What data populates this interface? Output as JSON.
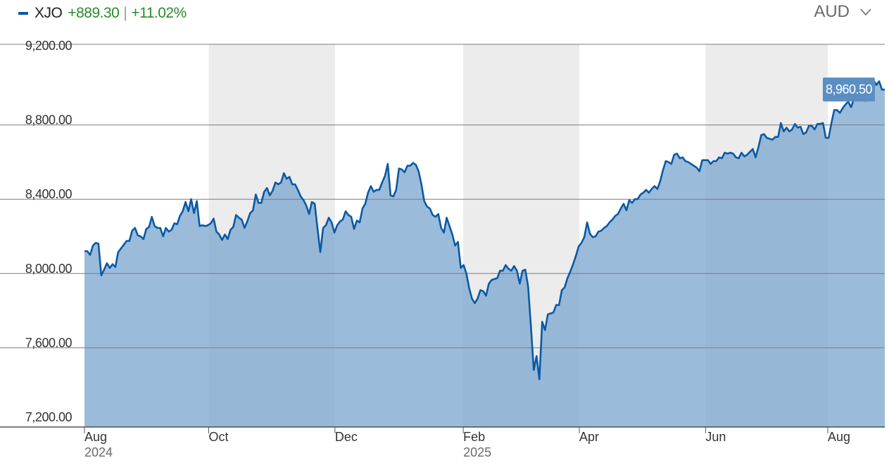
{
  "legend": {
    "symbol": "XJO",
    "change": "+889.30",
    "separator": "|",
    "change_pct": "+11.02%"
  },
  "currency": {
    "label": "AUD",
    "icon": "chevron-down-icon"
  },
  "colors": {
    "line": "#0a5aa3",
    "fill": "#7fa8d1",
    "band": "#ececec",
    "grid": "#7d7d7d",
    "positive": "#2a8a2a",
    "tooltip": "#5b8fc4"
  },
  "chart_data": {
    "type": "area",
    "series": [
      {
        "values": [
          8090,
          8090,
          8070,
          8120,
          8135,
          8130,
          7960,
          7990,
          8025,
          8000,
          8020,
          8005,
          8085,
          8105,
          8125,
          8145,
          8145,
          8200,
          8215,
          8175,
          8170,
          8155,
          8210,
          8220,
          8275,
          8225,
          8215,
          8215,
          8170,
          8215,
          8195,
          8205,
          8240,
          8235,
          8280,
          8305,
          8355,
          8305,
          8370,
          8295,
          8360,
          8225,
          8230,
          8225,
          8230,
          8240,
          8265,
          8195,
          8180,
          8150,
          8180,
          8155,
          8205,
          8220,
          8285,
          8270,
          8260,
          8215,
          8250,
          8295,
          8310,
          8395,
          8350,
          8350,
          8410,
          8430,
          8390,
          8415,
          8460,
          8450,
          8460,
          8510,
          8480,
          8490,
          8450,
          8450,
          8420,
          8385,
          8365,
          8335,
          8290,
          8355,
          8345,
          8210,
          8085,
          8215,
          8230,
          8270,
          8245,
          8190,
          8230,
          8250,
          8260,
          8305,
          8285,
          8275,
          8210,
          8255,
          8245,
          8320,
          8345,
          8405,
          8440,
          8410,
          8420,
          8420,
          8460,
          8495,
          8560,
          8390,
          8385,
          8420,
          8535,
          8530,
          8515,
          8550,
          8550,
          8565,
          8555,
          8520,
          8450,
          8360,
          8330,
          8320,
          8285,
          8275,
          8290,
          8215,
          8190,
          8270,
          8225,
          8180,
          8120,
          8140,
          8000,
          8015,
          7970,
          7890,
          7835,
          7810,
          7835,
          7880,
          7875,
          7850,
          7915,
          7935,
          7940,
          7945,
          7985,
          7985,
          8015,
          7995,
          7985,
          8010,
          7985,
          7915,
          7985,
          7990,
          7900,
          7685,
          7450,
          7525,
          7400,
          7710,
          7665,
          7750,
          7755,
          7760,
          7800,
          7800,
          7880,
          7895,
          7945,
          7980,
          8020,
          8065,
          8115,
          8135,
          8165,
          8245,
          8185,
          8165,
          8170,
          8195,
          8200,
          8215,
          8225,
          8245,
          8260,
          8280,
          8290,
          8320,
          8345,
          8310,
          8365,
          8350,
          8370,
          8370,
          8395,
          8405,
          8420,
          8405,
          8425,
          8440,
          8425,
          8465,
          8525,
          8575,
          8570,
          8560,
          8610,
          8615,
          8590,
          8595,
          8575,
          8570,
          8560,
          8550,
          8540,
          8520,
          8580,
          8580,
          8580,
          8560,
          8575,
          8575,
          8595,
          8590,
          8620,
          8615,
          8620,
          8615,
          8595,
          8590,
          8620,
          8600,
          8610,
          8625,
          8640,
          8595,
          8650,
          8715,
          8720,
          8700,
          8695,
          8690,
          8705,
          8705,
          8780,
          8735,
          8755,
          8735,
          8745,
          8775,
          8755,
          8760,
          8720,
          8730,
          8765,
          8765,
          8745,
          8775,
          8775,
          8780,
          8700,
          8700,
          8780,
          8850,
          8850,
          8835,
          8860,
          8880,
          8895,
          8865,
          8910,
          8950,
          8940,
          8920,
          8900,
          9015,
          9005,
          9010,
          8985,
          9005,
          8960,
          8960.5
        ]
      }
    ],
    "x_start": "2024-08-01",
    "x_end": "2025-08-29",
    "x_ticks": [
      {
        "month": "Aug",
        "year": "2024",
        "date": "2024-08-01"
      },
      {
        "month": "Oct",
        "year": "",
        "date": "2024-10-01"
      },
      {
        "month": "Dec",
        "year": "",
        "date": "2024-12-02"
      },
      {
        "month": "Feb",
        "year": "2025",
        "date": "2025-02-03"
      },
      {
        "month": "Apr",
        "year": "",
        "date": "2025-04-01"
      },
      {
        "month": "Jun",
        "year": "",
        "date": "2025-06-02"
      },
      {
        "month": "Aug",
        "year": "",
        "date": "2025-08-01"
      }
    ],
    "y_ticks": [
      "9,200.00",
      "8,800.00",
      "8,400.00",
      "8,000.00",
      "7,600.00",
      "7,200.00"
    ],
    "y_tick_values": [
      9200,
      8800,
      8400,
      8000,
      7600,
      7200
    ],
    "y_range": [
      7200,
      9200
    ],
    "shaded_bands": [
      [
        "2024-10-01",
        "2024-12-02"
      ],
      [
        "2025-02-03",
        "2025-04-01"
      ],
      [
        "2025-06-02",
        "2025-08-01"
      ]
    ],
    "last_value_label": "8,960.50",
    "grid": true
  }
}
